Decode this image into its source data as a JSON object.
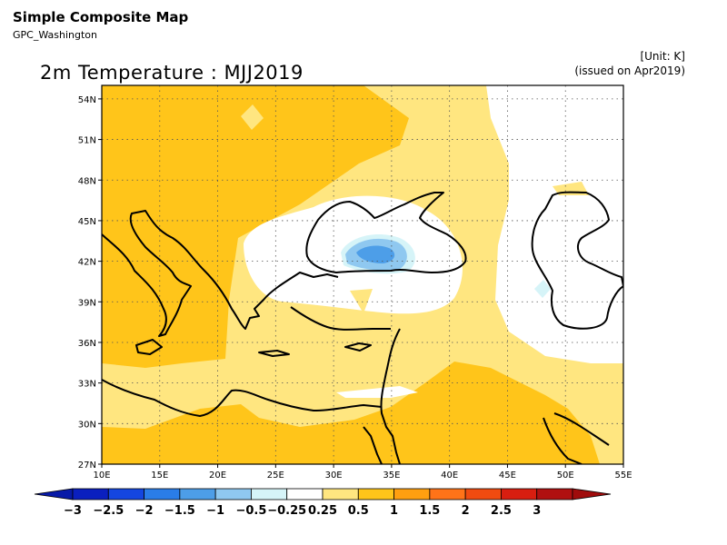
{
  "header": {
    "title": "Simple Composite Map",
    "subtitle": "GPC_Washington"
  },
  "unit_label": "[Unit: K]",
  "issued_label": "(issued on Apr2019)",
  "map": {
    "title": "2m Temperature : MJJ2019",
    "lon_range": [
      10,
      55
    ],
    "lat_range": [
      27,
      55
    ],
    "lon_ticks": [
      "10E",
      "15E",
      "20E",
      "25E",
      "30E",
      "35E",
      "40E",
      "45E",
      "50E",
      "55E"
    ],
    "lat_ticks": [
      "27N",
      "30N",
      "33N",
      "36N",
      "39N",
      "42N",
      "45N",
      "48N",
      "51N",
      "54N"
    ]
  },
  "colorbar": {
    "labels": [
      "−3",
      "−2.5",
      "−2",
      "−1.5",
      "−1",
      "−0.5",
      "−0.25",
      "0.25",
      "0.5",
      "1",
      "1.5",
      "2",
      "2.5",
      "3"
    ],
    "colors": [
      "#0a1fbf",
      "#1446e0",
      "#2a7de8",
      "#4d9ee8",
      "#8fc8f0",
      "#d6f4f8",
      "#ffffff",
      "#ffe680",
      "#ffc51a",
      "#ff9f10",
      "#ff7318",
      "#f04b10",
      "#d81e10",
      "#b01010"
    ]
  }
}
